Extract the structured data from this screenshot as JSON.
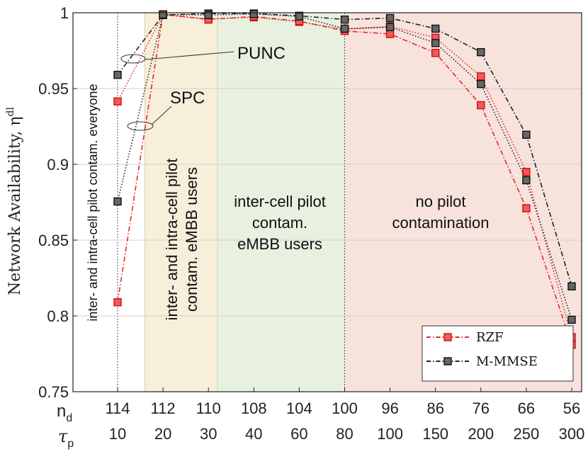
{
  "chart_data": {
    "type": "line",
    "ylabel": "Network Availability, η",
    "ylabel_sup": "dl",
    "ylim": [
      0.75,
      1.0
    ],
    "yticks": [
      "0.75",
      "0.8",
      "0.85",
      "0.9",
      "0.95",
      "1"
    ],
    "x_row_labels": {
      "nd_main": "n",
      "nd_sub": "d",
      "tau_main": "τ",
      "tau_sub": "p"
    },
    "nd": [
      "114",
      "112",
      "110",
      "108",
      "104",
      "100",
      "96",
      "86",
      "76",
      "66",
      "56"
    ],
    "tau": [
      "10",
      "20",
      "30",
      "40",
      "60",
      "80",
      "100",
      "150",
      "200",
      "250",
      "300"
    ],
    "regions": [
      {
        "label_lines": [
          "inter- and intra-cell pilot contam. everyone"
        ],
        "color": "#ffffff",
        "from": 0,
        "to": 0.6
      },
      {
        "label_lines": [
          "inter- and intra-cell pilot",
          "contam. eMBB users"
        ],
        "color": "#f7efda",
        "from": 0.6,
        "to": 2.2
      },
      {
        "label_lines": [
          "inter-cell pilot",
          "contam.",
          "eMBB users"
        ],
        "color": "#e8f1e0",
        "from": 2.2,
        "to": 5
      },
      {
        "label_lines": [
          "no pilot",
          "contamination"
        ],
        "color": "#f7e2dc",
        "from": 5,
        "to": 10
      }
    ],
    "series": [
      {
        "name": "RZF PUNC",
        "legend": "RZF",
        "color": "#e8282a",
        "dash": "dotted",
        "values": [
          0.9415,
          0.9985,
          0.996,
          0.997,
          0.994,
          0.989,
          0.991,
          0.9835,
          0.958,
          0.895,
          0.786
        ]
      },
      {
        "name": "RZF SPC",
        "legend": "RZF",
        "color": "#e8282a",
        "dash": "dashdot",
        "values": [
          0.809,
          0.999,
          0.9955,
          0.9975,
          0.9945,
          0.988,
          0.986,
          0.9735,
          0.939,
          0.871,
          0.781
        ]
      },
      {
        "name": "M-MMSE PUNC",
        "legend": "M-MMSE",
        "color": "#222222",
        "dash": "dashdot",
        "values": [
          0.959,
          0.9985,
          0.9995,
          0.9995,
          0.998,
          0.9955,
          0.9965,
          0.9895,
          0.974,
          0.9195,
          0.8195
        ]
      },
      {
        "name": "M-MMSE SPC",
        "legend": "M-MMSE",
        "color": "#222222",
        "dash": "dotted",
        "values": [
          0.8755,
          0.9988,
          0.9985,
          0.9992,
          0.9975,
          0.9895,
          0.9905,
          0.98,
          0.953,
          0.8895,
          0.7975
        ]
      }
    ],
    "legend": {
      "placement": "bottom-right",
      "entries": [
        "RZF",
        "M-MMSE"
      ]
    },
    "annotations": [
      "PUNC",
      "SPC"
    ]
  }
}
